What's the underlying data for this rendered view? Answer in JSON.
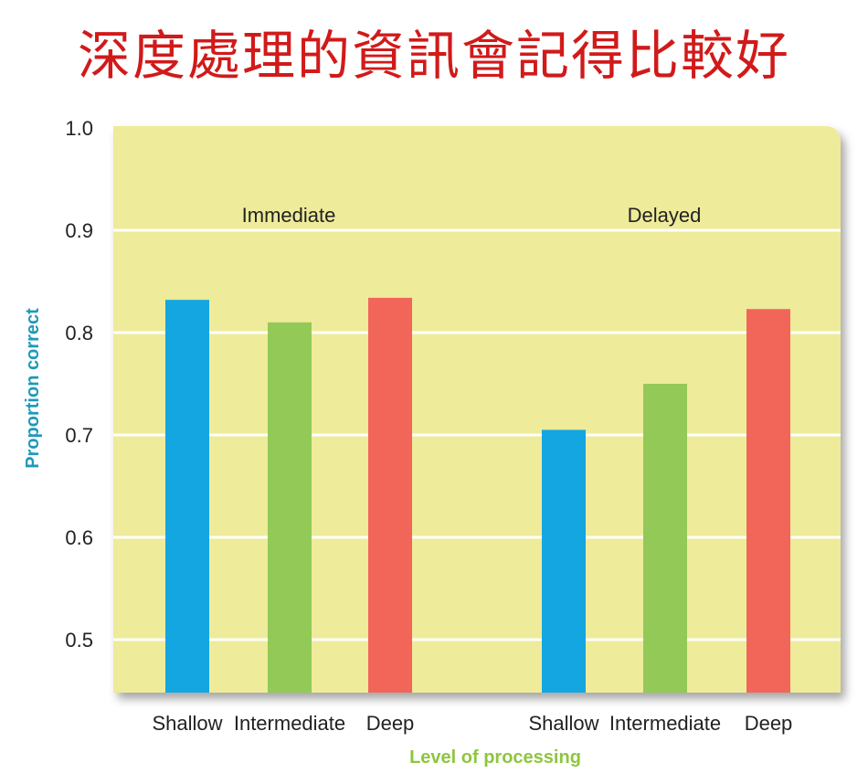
{
  "title": "深度處理的資訊會記得比較好",
  "chart_data": {
    "type": "bar",
    "ylabel": "Proportion correct",
    "xlabel": "Level of processing",
    "ylim": [
      0.45,
      1.0
    ],
    "yticks": [
      "1.0",
      "0.9",
      "0.8",
      "0.7",
      "0.6",
      "0.5"
    ],
    "ytick_values": [
      1.0,
      0.9,
      0.8,
      0.7,
      0.6,
      0.5
    ],
    "grid": true,
    "background_color": "#eeeb9a",
    "groups": [
      {
        "name": "Immediate",
        "categories": [
          "Shallow",
          "Intermediate",
          "Deep"
        ],
        "values": [
          0.832,
          0.81,
          0.834
        ]
      },
      {
        "name": "Delayed",
        "categories": [
          "Shallow",
          "Intermediate",
          "Deep"
        ],
        "values": [
          0.705,
          0.75,
          0.823
        ]
      }
    ],
    "colors": {
      "Shallow": "#14a6e0",
      "Intermediate": "#93c957",
      "Deep": "#f2665a"
    },
    "ylabel_color": "#1e9ab8",
    "xlabel_color": "#8dc63f"
  }
}
